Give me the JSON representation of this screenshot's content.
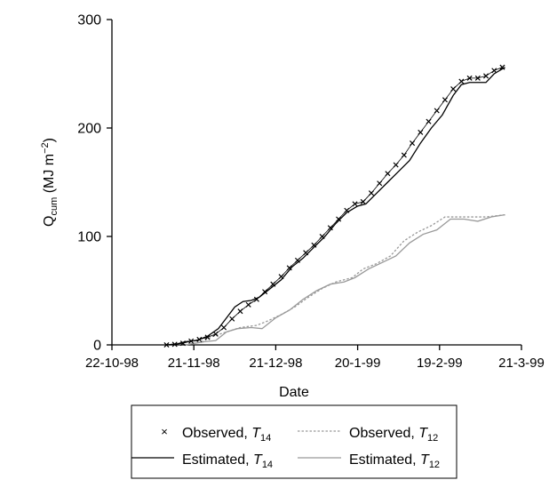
{
  "chart_data": {
    "type": "line",
    "xlabel": "Date",
    "ylabel": {
      "base": "Q",
      "sub": "cum",
      "unit_open": " (MJ m",
      "sup": "−2",
      "unit_close": ")"
    },
    "x_ticks": [
      "22-10-98",
      "21-11-98",
      "21-12-98",
      "20-1-99",
      "19-2-99",
      "21-3-99"
    ],
    "x_range": [
      "22-10-98",
      "21-3-99"
    ],
    "y_ticks": [
      0,
      100,
      200,
      300
    ],
    "ylim": [
      0,
      300
    ],
    "legend_placement": "bottom",
    "series": [
      {
        "name": "Observed, T14",
        "label": {
          "text": "Observed, ",
          "var": "T",
          "sub": "14"
        },
        "style": "markers",
        "color": "#000000",
        "points": [
          [
            "1998-11-11",
            0
          ],
          [
            "1998-11-14",
            0.5
          ],
          [
            "1998-11-17",
            1.5
          ],
          [
            "1998-11-20",
            3.5
          ],
          [
            "1998-11-23",
            5
          ],
          [
            "1998-11-26",
            7
          ],
          [
            "1998-11-29",
            10
          ],
          [
            "1998-12-02",
            16
          ],
          [
            "1998-12-05",
            24
          ],
          [
            "1998-12-08",
            31
          ],
          [
            "1998-12-11",
            37
          ],
          [
            "1998-12-14",
            42
          ],
          [
            "1998-12-17",
            49
          ],
          [
            "1998-12-20",
            56
          ],
          [
            "1998-12-23",
            63
          ],
          [
            "1998-12-26",
            71
          ],
          [
            "1998-12-29",
            78
          ],
          [
            "1999-01-01",
            85
          ],
          [
            "1999-01-04",
            92
          ],
          [
            "1999-01-07",
            100
          ],
          [
            "1999-01-10",
            108
          ],
          [
            "1999-01-13",
            116
          ],
          [
            "1999-01-16",
            124
          ],
          [
            "1999-01-19",
            130
          ],
          [
            "1999-01-22",
            132
          ],
          [
            "1999-01-25",
            140
          ],
          [
            "1999-01-28",
            149
          ],
          [
            "1999-01-31",
            158
          ],
          [
            "1999-02-03",
            166
          ],
          [
            "1999-02-06",
            175
          ],
          [
            "1999-02-09",
            186
          ],
          [
            "1999-02-12",
            196
          ],
          [
            "1999-02-15",
            206
          ],
          [
            "1999-02-18",
            216
          ],
          [
            "1999-02-21",
            226
          ],
          [
            "1999-02-24",
            236
          ],
          [
            "1999-02-27",
            243
          ],
          [
            "1999-03-02",
            246
          ],
          [
            "1999-03-05",
            246
          ],
          [
            "1999-03-08",
            248
          ],
          [
            "1999-03-11",
            253
          ],
          [
            "1999-03-14",
            256
          ]
        ]
      },
      {
        "name": "Estimated, T14",
        "label": {
          "text": "Estimated, ",
          "var": "T",
          "sub": "14"
        },
        "style": "solid",
        "color": "#000000",
        "points": [
          [
            "1998-11-11",
            0
          ],
          [
            "1998-11-15",
            1
          ],
          [
            "1998-11-18",
            3
          ],
          [
            "1998-11-22",
            4
          ],
          [
            "1998-11-26",
            8
          ],
          [
            "1998-11-30",
            15
          ],
          [
            "1998-12-03",
            25
          ],
          [
            "1998-12-06",
            35
          ],
          [
            "1998-12-09",
            40
          ],
          [
            "1998-12-12",
            41
          ],
          [
            "1998-12-15",
            44
          ],
          [
            "1998-12-19",
            52
          ],
          [
            "1998-12-23",
            60
          ],
          [
            "1998-12-27",
            72
          ],
          [
            "1998-12-31",
            80
          ],
          [
            "1999-01-04",
            90
          ],
          [
            "1999-01-08",
            100
          ],
          [
            "1999-01-12",
            112
          ],
          [
            "1999-01-16",
            122
          ],
          [
            "1999-01-20",
            128
          ],
          [
            "1999-01-23",
            130
          ],
          [
            "1999-01-27",
            140
          ],
          [
            "1999-01-31",
            150
          ],
          [
            "1999-02-04",
            160
          ],
          [
            "1999-02-08",
            170
          ],
          [
            "1999-02-12",
            186
          ],
          [
            "1999-02-16",
            200
          ],
          [
            "1999-02-20",
            212
          ],
          [
            "1999-02-24",
            230
          ],
          [
            "1999-02-27",
            240
          ],
          [
            "1999-03-02",
            242
          ],
          [
            "1999-03-08",
            242
          ],
          [
            "1999-03-11",
            250
          ],
          [
            "1999-03-15",
            256
          ]
        ]
      },
      {
        "name": "Observed, T12",
        "label": {
          "text": "Observed, ",
          "var": "T",
          "sub": "12"
        },
        "style": "dotted",
        "color": "#999999",
        "points": [
          [
            "1998-11-18",
            0
          ],
          [
            "1998-11-24",
            3
          ],
          [
            "1998-11-28",
            8
          ],
          [
            "1998-12-03",
            12
          ],
          [
            "1998-12-08",
            16
          ],
          [
            "1998-12-14",
            18
          ],
          [
            "1998-12-18",
            22
          ],
          [
            "1998-12-23",
            28
          ],
          [
            "1998-12-28",
            35
          ],
          [
            "1999-01-02",
            44
          ],
          [
            "1999-01-07",
            52
          ],
          [
            "1999-01-12",
            58
          ],
          [
            "1999-01-18",
            62
          ],
          [
            "1999-01-22",
            70
          ],
          [
            "1999-01-27",
            75
          ],
          [
            "1999-02-01",
            82
          ],
          [
            "1999-02-06",
            96
          ],
          [
            "1999-02-11",
            104
          ],
          [
            "1999-02-16",
            110
          ],
          [
            "1999-02-21",
            118
          ],
          [
            "1999-02-26",
            118
          ],
          [
            "1999-03-03",
            118
          ],
          [
            "1999-03-08",
            118
          ],
          [
            "1999-03-15",
            120
          ]
        ]
      },
      {
        "name": "Estimated, T12",
        "label": {
          "text": "Estimated, ",
          "var": "T",
          "sub": "12"
        },
        "style": "solid",
        "color": "#999999",
        "points": [
          [
            "1998-11-18",
            0
          ],
          [
            "1998-11-25",
            3
          ],
          [
            "1998-11-29",
            4
          ],
          [
            "1998-12-03",
            12
          ],
          [
            "1998-12-07",
            15
          ],
          [
            "1998-12-12",
            16
          ],
          [
            "1998-12-16",
            15
          ],
          [
            "1998-12-21",
            25
          ],
          [
            "1998-12-26",
            32
          ],
          [
            "1998-12-31",
            42
          ],
          [
            "1999-01-05",
            50
          ],
          [
            "1999-01-10",
            56
          ],
          [
            "1999-01-15",
            58
          ],
          [
            "1999-01-19",
            62
          ],
          [
            "1999-01-24",
            70
          ],
          [
            "1999-01-29",
            76
          ],
          [
            "1999-02-03",
            82
          ],
          [
            "1999-02-08",
            94
          ],
          [
            "1999-02-13",
            102
          ],
          [
            "1999-02-18",
            106
          ],
          [
            "1999-02-23",
            116
          ],
          [
            "1999-02-28",
            116
          ],
          [
            "1999-03-05",
            114
          ],
          [
            "1999-03-10",
            118
          ],
          [
            "1999-03-15",
            120
          ]
        ]
      }
    ]
  }
}
